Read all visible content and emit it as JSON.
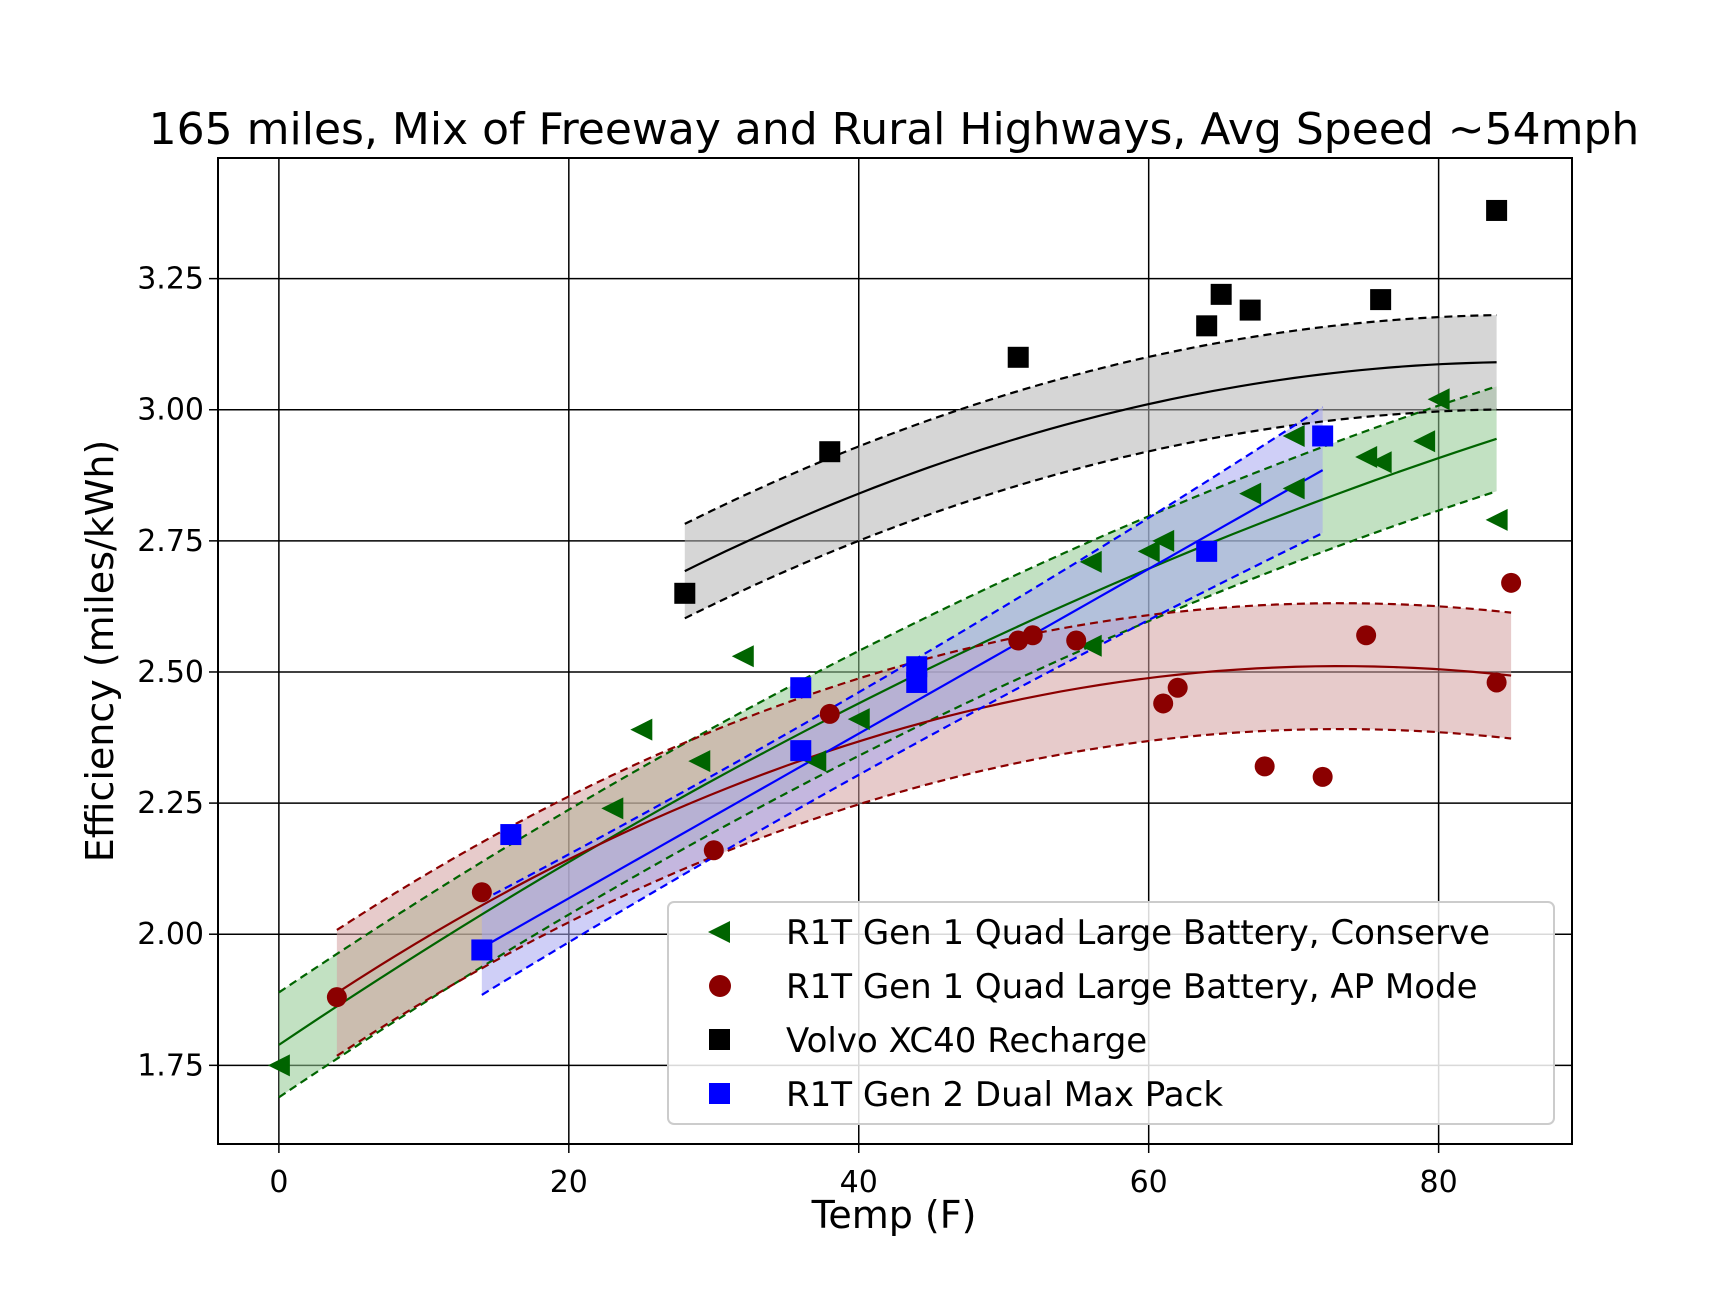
{
  "chart_data": {
    "type": "scatter",
    "title": "165 miles, Mix of Freeway and Rural Highways, Avg Speed ~54mph",
    "xlabel": "Temp (F)",
    "ylabel": "Efficiency (miles/kWh)",
    "xlim": [
      -4.2,
      89.2
    ],
    "ylim": [
      1.6,
      3.48
    ],
    "x_ticks": [
      "0",
      "20",
      "40",
      "60",
      "80"
    ],
    "y_ticks": [
      "1.75",
      "2.00",
      "2.25",
      "2.50",
      "2.75",
      "3.00",
      "3.25"
    ],
    "x_tick_values": [
      0,
      20,
      40,
      60,
      80
    ],
    "y_tick_values": [
      1.75,
      2.0,
      2.25,
      2.5,
      2.75,
      3.0,
      3.25
    ],
    "grid": true,
    "legend_position": "lower-right",
    "series": [
      {
        "name": "R1T Gen 1 Quad Large Battery, Conserve",
        "marker": "triangle-left",
        "color": "#006400",
        "band_color": "#90c890",
        "points": [
          [
            0,
            1.75
          ],
          [
            23,
            2.24
          ],
          [
            25,
            2.39
          ],
          [
            29,
            2.33
          ],
          [
            32,
            2.53
          ],
          [
            37,
            2.33
          ],
          [
            40,
            2.41
          ],
          [
            56,
            2.71
          ],
          [
            56,
            2.55
          ],
          [
            60,
            2.73
          ],
          [
            61,
            2.75
          ],
          [
            67,
            2.84
          ],
          [
            70,
            2.95
          ],
          [
            70,
            2.85
          ],
          [
            75,
            2.91
          ],
          [
            76,
            2.9
          ],
          [
            79,
            2.94
          ],
          [
            80,
            3.02
          ],
          [
            84,
            2.79
          ]
        ],
        "fit": {
          "x_range": [
            0,
            84
          ],
          "coef": [
            1.789,
            0.01857,
            -5.73e-05
          ],
          "band": 0.1
        }
      },
      {
        "name": "R1T Gen 1 Quad Large Battery, AP Mode",
        "marker": "circle",
        "color": "#8b0000",
        "band_color": "#d4a0a0",
        "points": [
          [
            4,
            1.88
          ],
          [
            14,
            2.08
          ],
          [
            30,
            2.16
          ],
          [
            38,
            2.42
          ],
          [
            51,
            2.56
          ],
          [
            52,
            2.57
          ],
          [
            55,
            2.56
          ],
          [
            61,
            2.44
          ],
          [
            62,
            2.47
          ],
          [
            68,
            2.32
          ],
          [
            72,
            2.3
          ],
          [
            75,
            2.57
          ],
          [
            84,
            2.48
          ],
          [
            85,
            2.67
          ]
        ],
        "fit": {
          "x_range": [
            4,
            85
          ],
          "coef": [
            1.814,
            0.01904,
            -0.00013
          ],
          "band": 0.12
        }
      },
      {
        "name": "Volvo XC40 Recharge",
        "marker": "square",
        "color": "#000000",
        "band_color": "#b4b4b4",
        "points": [
          [
            28,
            2.65
          ],
          [
            38,
            2.92
          ],
          [
            51,
            3.1
          ],
          [
            64,
            3.16
          ],
          [
            65,
            3.22
          ],
          [
            67,
            3.19
          ],
          [
            76,
            3.21
          ],
          [
            84,
            3.38
          ]
        ],
        "fit": {
          "x_range": [
            28,
            84
          ],
          "coef": [
            2.215,
            0.02036,
            -0.0001183
          ],
          "band": 0.09
        }
      },
      {
        "name": "R1T Gen 2 Dual Max Pack",
        "marker": "square",
        "color": "#0000ff",
        "band_color": "#a8a8f0",
        "points": [
          [
            14,
            1.97
          ],
          [
            16,
            2.19
          ],
          [
            36,
            2.47
          ],
          [
            36,
            2.35
          ],
          [
            44,
            2.51
          ],
          [
            44,
            2.48
          ],
          [
            64,
            2.73
          ],
          [
            72,
            2.95
          ]
        ],
        "fit": {
          "x_range": [
            14,
            72
          ],
          "coef": [
            1.7545,
            0.0157,
            0
          ],
          "band": [
            0.09,
            0.055,
            0.12
          ]
        }
      }
    ]
  }
}
